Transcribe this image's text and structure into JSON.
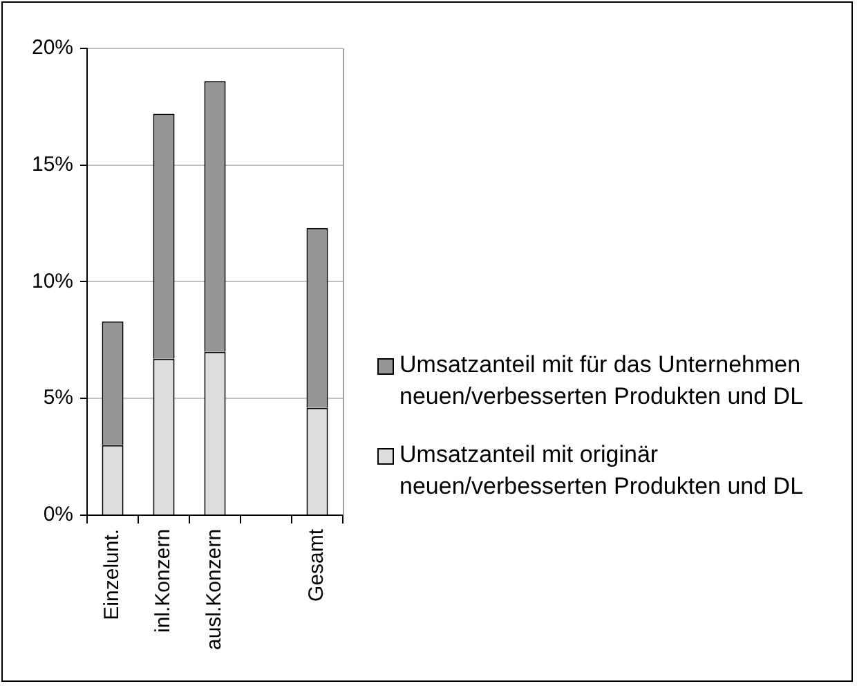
{
  "chart_data": {
    "type": "bar",
    "stacked": true,
    "categories": [
      "Einzelunt.",
      "inl.Konzern",
      "ausl.Konzern",
      null,
      "Gesamt"
    ],
    "series": [
      {
        "name": "Umsatzanteil mit originär neuen/verbesserten Produkten und DL",
        "color": "#dddddd",
        "values": [
          3.0,
          6.7,
          7.0,
          null,
          4.6
        ]
      },
      {
        "name": "Umsatzanteil mit für das Unternehmen neuen/verbesserten Produkten und DL",
        "color": "#969696",
        "values": [
          5.3,
          10.5,
          11.6,
          null,
          7.7
        ]
      }
    ],
    "ylim": [
      0,
      20
    ],
    "yticks": [
      {
        "value": 0,
        "label": "0%"
      },
      {
        "value": 5,
        "label": "5%"
      },
      {
        "value": 10,
        "label": "10%"
      },
      {
        "value": 15,
        "label": "15%"
      },
      {
        "value": 20,
        "label": "20%"
      }
    ],
    "grid": "y",
    "legend": "right"
  }
}
